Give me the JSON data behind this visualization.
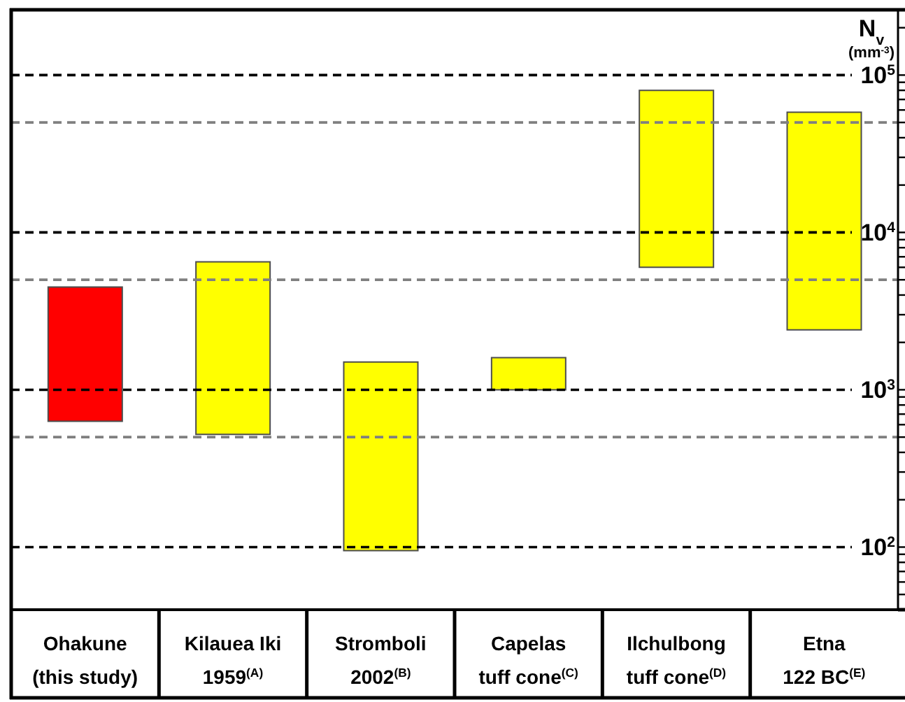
{
  "chart_data": {
    "type": "bar",
    "categories": [
      "Ohakune\n(this study)",
      "Kilauea Iki\n1959$^{(A)}$",
      "Stromboli\n2002$^{(B)}$",
      "Capelas\ntuff cone$^{(C)}$",
      "Ilchulbong\ntuff cone$^{(D)}$",
      "Etna\n122 BC$^{(E)}$"
    ],
    "base": [
      630,
      520,
      95,
      1000,
      6000,
      2400
    ],
    "values": [
      3870,
      5980,
      1405,
      600,
      74000,
      55600
    ],
    "colors": [
      "#ff0000",
      "#ffff00",
      "#ffff00",
      "#ffff00",
      "#ffff00",
      "#ffff00"
    ],
    "ylabel": "N$_{v}$ (mm$^{-3}$)",
    "log": true,
    "ylim": [
      40,
      260000
    ],
    "yticks": [
      {
        "value": 50,
        "label": null
      },
      {
        "value": 60,
        "label": null
      },
      {
        "value": 70,
        "label": null
      },
      {
        "value": 80,
        "label": null
      },
      {
        "value": 90,
        "label": null
      },
      {
        "value": 100,
        "label": "10$^{2}$"
      },
      {
        "value": 200,
        "label": null
      },
      {
        "value": 300,
        "label": null
      },
      {
        "value": 400,
        "label": null
      },
      {
        "value": 500,
        "label": null
      },
      {
        "value": 600,
        "label": null
      },
      {
        "value": 700,
        "label": null
      },
      {
        "value": 800,
        "label": null
      },
      {
        "value": 900,
        "label": null
      },
      {
        "value": 1000,
        "label": "10$^{3}$"
      },
      {
        "value": 2000,
        "label": null
      },
      {
        "value": 3000,
        "label": null
      },
      {
        "value": 4000,
        "label": null
      },
      {
        "value": 5000,
        "label": null
      },
      {
        "value": 6000,
        "label": null
      },
      {
        "value": 7000,
        "label": null
      },
      {
        "value": 8000,
        "label": null
      },
      {
        "value": 9000,
        "label": null
      },
      {
        "value": 10000,
        "label": "10$^{4}$"
      },
      {
        "value": 20000,
        "label": null
      },
      {
        "value": 30000,
        "label": null
      },
      {
        "value": 40000,
        "label": null
      },
      {
        "value": 50000,
        "label": null
      },
      {
        "value": 60000,
        "label": null
      },
      {
        "value": 70000,
        "label": null
      },
      {
        "value": 80000,
        "label": null
      },
      {
        "value": 90000,
        "label": null
      },
      {
        "value": 100000,
        "label": "10$^{5}$"
      },
      {
        "value": 200000,
        "label": null
      }
    ],
    "ref_lines": [
      {
        "axis": "y",
        "value": 100,
        "color": "#000000",
        "line_style": "dashed"
      },
      {
        "axis": "y",
        "value": 1000,
        "color": "#000000",
        "line_style": "dashed"
      },
      {
        "axis": "y",
        "value": 10000,
        "color": "#000000",
        "line_style": "dashed"
      },
      {
        "axis": "y",
        "value": 100000,
        "color": "#000000",
        "line_style": "dashed"
      },
      {
        "axis": "y",
        "value": 500,
        "color": "#808080",
        "line_style": "dashed"
      },
      {
        "axis": "y",
        "value": 5000,
        "color": "#808080",
        "line_style": "dashed"
      },
      {
        "axis": "y",
        "value": 50000,
        "color": "#808080",
        "line_style": "dashed"
      }
    ]
  }
}
